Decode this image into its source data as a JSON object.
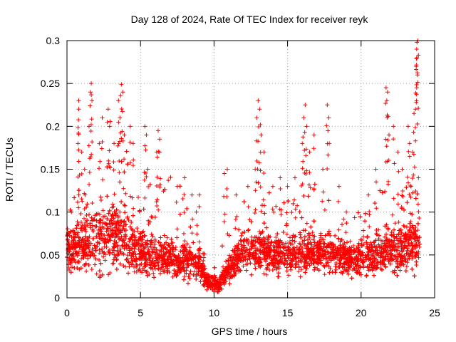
{
  "chart_data": {
    "type": "scatter",
    "title": "Day 128 of 2024, Rate Of TEC Index for receiver reyk",
    "xlabel": "GPS time / hours",
    "ylabel": "ROTI / TECUs",
    "xlim": [
      0,
      25
    ],
    "ylim": [
      0,
      0.3
    ],
    "xticks": [
      0,
      5,
      10,
      15,
      20,
      25
    ],
    "xtick_labels": [
      "0",
      "5",
      "10",
      "15",
      "20",
      "25"
    ],
    "yticks": [
      0,
      0.05,
      0.1,
      0.15,
      0.2,
      0.25,
      0.3
    ],
    "ytick_labels": [
      "0",
      "0.05",
      "0.1",
      "0.15",
      "0.2",
      "0.25",
      "0.3"
    ],
    "grid": true,
    "marker": "+",
    "series": [
      {
        "name": "ROTI",
        "color": "#ff0000",
        "profile": [
          {
            "t": 0.0,
            "base": 0.055,
            "spread": 0.035,
            "upper": 0.095
          },
          {
            "t": 1.0,
            "base": 0.06,
            "spread": 0.045,
            "upper": 0.15
          },
          {
            "t": 1.7,
            "base": 0.065,
            "spread": 0.055,
            "upper": 0.22
          },
          {
            "t": 2.5,
            "base": 0.07,
            "spread": 0.06,
            "upper": 0.2
          },
          {
            "t": 3.5,
            "base": 0.075,
            "spread": 0.065,
            "upper": 0.23
          },
          {
            "t": 4.5,
            "base": 0.06,
            "spread": 0.05,
            "upper": 0.17
          },
          {
            "t": 5.5,
            "base": 0.05,
            "spread": 0.035,
            "upper": 0.13
          },
          {
            "t": 6.5,
            "base": 0.045,
            "spread": 0.03,
            "upper": 0.18
          },
          {
            "t": 8.0,
            "base": 0.045,
            "spread": 0.03,
            "upper": 0.12
          },
          {
            "t": 9.0,
            "base": 0.04,
            "spread": 0.025,
            "upper": 0.09
          },
          {
            "t": 9.5,
            "base": 0.02,
            "spread": 0.015,
            "upper": 0.05
          },
          {
            "t": 10.2,
            "base": 0.015,
            "spread": 0.012,
            "upper": 0.04
          },
          {
            "t": 10.8,
            "base": 0.03,
            "spread": 0.02,
            "upper": 0.13
          },
          {
            "t": 12.0,
            "base": 0.055,
            "spread": 0.03,
            "upper": 0.12
          },
          {
            "t": 13.0,
            "base": 0.055,
            "spread": 0.035,
            "upper": 0.15
          },
          {
            "t": 14.0,
            "base": 0.05,
            "spread": 0.03,
            "upper": 0.12
          },
          {
            "t": 15.5,
            "base": 0.05,
            "spread": 0.03,
            "upper": 0.11
          },
          {
            "t": 16.5,
            "base": 0.055,
            "spread": 0.035,
            "upper": 0.15
          },
          {
            "t": 18.0,
            "base": 0.05,
            "spread": 0.03,
            "upper": 0.11
          },
          {
            "t": 19.5,
            "base": 0.045,
            "spread": 0.03,
            "upper": 0.1
          },
          {
            "t": 20.5,
            "base": 0.05,
            "spread": 0.035,
            "upper": 0.11
          },
          {
            "t": 21.5,
            "base": 0.055,
            "spread": 0.04,
            "upper": 0.14
          },
          {
            "t": 22.5,
            "base": 0.055,
            "spread": 0.04,
            "upper": 0.13
          },
          {
            "t": 23.5,
            "base": 0.06,
            "spread": 0.045,
            "upper": 0.15
          },
          {
            "t": 24.0,
            "base": 0.055,
            "spread": 0.04,
            "upper": 0.12
          }
        ],
        "spikes": [
          {
            "x": 0.3,
            "y": 0.1
          },
          {
            "x": 0.8,
            "y": 0.12
          },
          {
            "x": 1.2,
            "y": 0.15
          },
          {
            "x": 1.6,
            "y": 0.24
          },
          {
            "x": 1.65,
            "y": 0.25
          },
          {
            "x": 1.7,
            "y": 0.23
          },
          {
            "x": 1.5,
            "y": 0.2
          },
          {
            "x": 0.8,
            "y": 0.23
          },
          {
            "x": 0.8,
            "y": 0.22
          },
          {
            "x": 0.75,
            "y": 0.18
          },
          {
            "x": 1.0,
            "y": 0.17
          },
          {
            "x": 2.4,
            "y": 0.21
          },
          {
            "x": 2.2,
            "y": 0.18
          },
          {
            "x": 2.8,
            "y": 0.22
          },
          {
            "x": 2.9,
            "y": 0.2
          },
          {
            "x": 3.2,
            "y": 0.18
          },
          {
            "x": 3.5,
            "y": 0.23
          },
          {
            "x": 3.6,
            "y": 0.21
          },
          {
            "x": 3.8,
            "y": 0.24
          },
          {
            "x": 3.7,
            "y": 0.249
          },
          {
            "x": 3.9,
            "y": 0.19
          },
          {
            "x": 4.3,
            "y": 0.2
          },
          {
            "x": 4.5,
            "y": 0.18
          },
          {
            "x": 5.3,
            "y": 0.2
          },
          {
            "x": 5.4,
            "y": 0.19
          },
          {
            "x": 6.2,
            "y": 0.195
          },
          {
            "x": 6.3,
            "y": 0.185
          },
          {
            "x": 6.1,
            "y": 0.17
          },
          {
            "x": 5.5,
            "y": 0.15
          },
          {
            "x": 7.5,
            "y": 0.13
          },
          {
            "x": 8.0,
            "y": 0.14
          },
          {
            "x": 8.5,
            "y": 0.12
          },
          {
            "x": 9.0,
            "y": 0.12
          },
          {
            "x": 8.8,
            "y": 0.1
          },
          {
            "x": 10.7,
            "y": 0.145
          },
          {
            "x": 10.9,
            "y": 0.15
          },
          {
            "x": 11.5,
            "y": 0.12
          },
          {
            "x": 12.3,
            "y": 0.13
          },
          {
            "x": 12.8,
            "y": 0.15
          },
          {
            "x": 13.0,
            "y": 0.23
          },
          {
            "x": 13.1,
            "y": 0.22
          },
          {
            "x": 12.9,
            "y": 0.21
          },
          {
            "x": 13.2,
            "y": 0.19
          },
          {
            "x": 13.4,
            "y": 0.17
          },
          {
            "x": 14.0,
            "y": 0.13
          },
          {
            "x": 14.5,
            "y": 0.14
          },
          {
            "x": 15.0,
            "y": 0.13
          },
          {
            "x": 15.5,
            "y": 0.14
          },
          {
            "x": 16.2,
            "y": 0.225
          },
          {
            "x": 16.1,
            "y": 0.21
          },
          {
            "x": 16.3,
            "y": 0.2
          },
          {
            "x": 16.0,
            "y": 0.18
          },
          {
            "x": 16.8,
            "y": 0.19
          },
          {
            "x": 16.5,
            "y": 0.17
          },
          {
            "x": 17.7,
            "y": 0.225
          },
          {
            "x": 17.8,
            "y": 0.21
          },
          {
            "x": 17.4,
            "y": 0.15
          },
          {
            "x": 18.5,
            "y": 0.13
          },
          {
            "x": 19.0,
            "y": 0.1
          },
          {
            "x": 20.5,
            "y": 0.12
          },
          {
            "x": 21.0,
            "y": 0.15
          },
          {
            "x": 21.7,
            "y": 0.245
          },
          {
            "x": 21.8,
            "y": 0.24
          },
          {
            "x": 21.75,
            "y": 0.23
          },
          {
            "x": 21.9,
            "y": 0.19
          },
          {
            "x": 22.2,
            "y": 0.2
          },
          {
            "x": 22.5,
            "y": 0.17
          },
          {
            "x": 22.8,
            "y": 0.15
          },
          {
            "x": 23.2,
            "y": 0.2
          },
          {
            "x": 23.3,
            "y": 0.18
          },
          {
            "x": 23.5,
            "y": 0.17
          },
          {
            "x": 23.6,
            "y": 0.215
          },
          {
            "x": 23.7,
            "y": 0.22
          },
          {
            "x": 23.75,
            "y": 0.27
          },
          {
            "x": 23.8,
            "y": 0.28
          },
          {
            "x": 23.78,
            "y": 0.29
          },
          {
            "x": 23.8,
            "y": 0.298
          },
          {
            "x": 23.85,
            "y": 0.3
          },
          {
            "x": 23.9,
            "y": 0.14
          },
          {
            "x": 23.4,
            "y": 0.13
          }
        ]
      }
    ]
  }
}
